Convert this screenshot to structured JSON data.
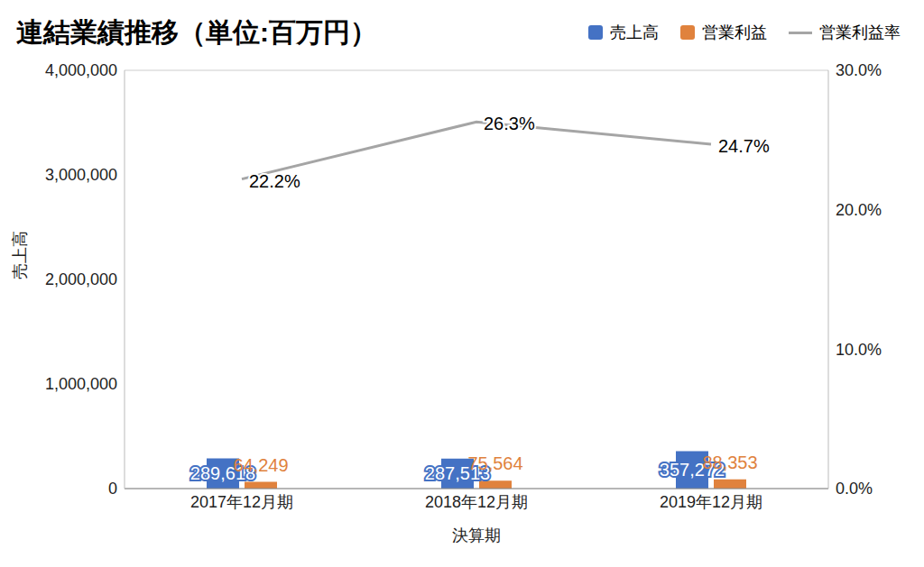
{
  "chart_data": {
    "type": "bar",
    "title": "連結業績推移（単位:百万円）",
    "x_label": "決算期",
    "y_label": "売上高",
    "categories": [
      "2017年12月期",
      "2018年12月期",
      "2019年12月期"
    ],
    "series": [
      {
        "name": "売上高",
        "type": "bar",
        "color": "#4472c4",
        "values": [
          289618,
          287513,
          357272
        ],
        "value_labels": [
          "289,618",
          "287,513",
          "357,272"
        ]
      },
      {
        "name": "営業利益",
        "type": "bar",
        "color": "#e0823d",
        "values": [
          64249,
          75564,
          88353
        ],
        "value_labels": [
          "64,249",
          "75,564",
          "88,353"
        ]
      },
      {
        "name": "営業利益率",
        "type": "line",
        "color": "#a5a5a5",
        "axis": "y2",
        "values": [
          22.2,
          26.3,
          24.7
        ],
        "value_labels": [
          "22.2%",
          "26.3%",
          "24.7%"
        ]
      }
    ],
    "ylim": [
      0,
      4000000
    ],
    "yticks": [
      0,
      {
        "value": 1000000,
        "label": "1,000,000"
      },
      {
        "value": 2000000,
        "label": "2,000,000"
      },
      {
        "value": 3000000,
        "label": "3,000,000"
      },
      {
        "value": 4000000,
        "label": "4,000,000"
      }
    ],
    "y2lim": [
      0,
      30
    ],
    "y2ticks": [
      {
        "value": 0,
        "label": "0.0%"
      },
      {
        "value": 10,
        "label": "10.0%"
      },
      {
        "value": 20,
        "label": "20.0%"
      },
      {
        "value": 30,
        "label": "30.0%"
      }
    ],
    "grid": true,
    "legend": "top right",
    "data_labels": true
  }
}
